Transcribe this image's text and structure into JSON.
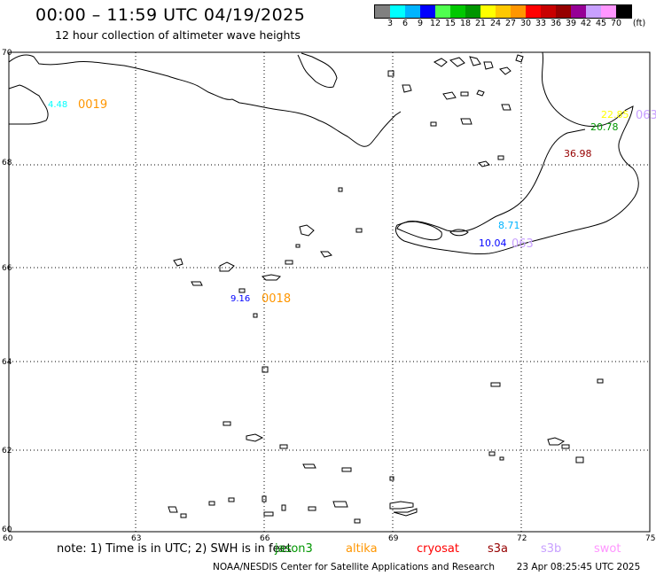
{
  "header": {
    "title": "00:00 – 11:59 UTC 04/19/2025",
    "subtitle": "12 hour collection of altimeter wave heights"
  },
  "colorbar": {
    "unit": "(ft)",
    "ticks": [
      "3",
      "6",
      "9",
      "12",
      "15",
      "18",
      "21",
      "24",
      "27",
      "30",
      "33",
      "36",
      "39",
      "42",
      "45",
      "70"
    ],
    "colors": [
      "#808080",
      "#00ffff",
      "#00b4ff",
      "#0000ff",
      "#50ff50",
      "#00c800",
      "#009600",
      "#ffff00",
      "#ffc800",
      "#ff9600",
      "#ff0000",
      "#c80000",
      "#960000",
      "#960096",
      "#c8a0ff",
      "#ff96ff",
      "#000000"
    ]
  },
  "axes": {
    "lat_labels": [
      "70",
      "68",
      "66",
      "64",
      "62",
      "60"
    ],
    "lon_labels": [
      "60",
      "63",
      "66",
      "69",
      "72",
      "75"
    ]
  },
  "observations": [
    {
      "text": "4.48",
      "color": "#00ffff"
    },
    {
      "text": "0019",
      "color": "#ff9600"
    },
    {
      "text": "9.16",
      "color": "#0000ff"
    },
    {
      "text": "0018",
      "color": "#ff9600"
    },
    {
      "text": "22.85",
      "color": "#ffff00"
    },
    {
      "text": "063",
      "color": "#c8a0ff"
    },
    {
      "text": "20.78",
      "color": "#009600"
    },
    {
      "text": "36.98",
      "color": "#960000"
    },
    {
      "text": "8.71",
      "color": "#00b4ff"
    },
    {
      "text": "10.04",
      "color": "#0000ff"
    },
    {
      "text": "063",
      "color": "#c8a0ff"
    }
  ],
  "note": {
    "prefix": "note: 1) Time is in UTC; 2) SWH is in feet",
    "satellites": [
      {
        "name": "jason3",
        "color": "#009600"
      },
      {
        "name": "altika",
        "color": "#ff9600"
      },
      {
        "name": "cryosat",
        "color": "#ff0000"
      },
      {
        "name": "s3a",
        "color": "#960000"
      },
      {
        "name": "s3b",
        "color": "#c8a0ff"
      },
      {
        "name": "swot",
        "color": "#ff96ff"
      }
    ]
  },
  "footer": {
    "credit": "NOAA/NESDIS Center for Satellite Applications and Research",
    "timestamp": "23 Apr 08:25:45 UTC 2025"
  }
}
